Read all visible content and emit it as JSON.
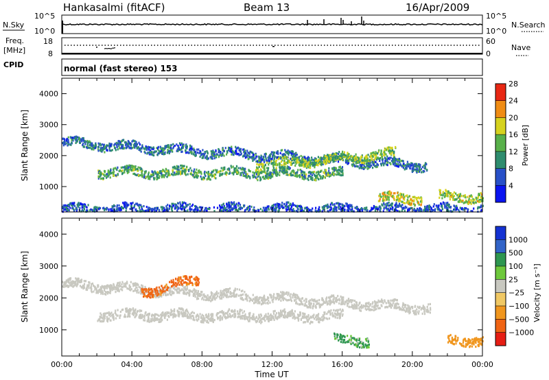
{
  "header": {
    "station": "Hankasalmi (fitACF)",
    "beam": "Beam 13",
    "date": "16/Apr/2009"
  },
  "panels": {
    "nsky_label": "N.Sky",
    "nsky_ticks": [
      "10^5",
      "10^0"
    ],
    "nsearch_label": "N.Search",
    "nsearch_ticks": [
      "10^5",
      "10^0"
    ],
    "freq_label": "Freq.",
    "freq_unit": "[MHz]",
    "freq_ticks": [
      "18",
      "8"
    ],
    "nave_label": "Nave",
    "nave_ticks": [
      "60",
      "0"
    ],
    "cpid_label": "CPID",
    "cpid_text": "normal (fast stereo) 153"
  },
  "chart_data": [
    {
      "type": "heatmap",
      "name": "power",
      "ylabel": "Slant Range [km]",
      "xlabel": "",
      "x_ticks": [
        "00:00",
        "04:00",
        "08:00",
        "12:00",
        "16:00",
        "20:00",
        "00:00"
      ],
      "xlim_hours": [
        0,
        24
      ],
      "y_ticks": [
        1000,
        2000,
        3000,
        4000
      ],
      "ylim": [
        180,
        4500
      ],
      "colorbar": {
        "label": "Power [dB]",
        "ticks": [
          "4",
          "8",
          "12",
          "16",
          "20",
          "24",
          "28"
        ],
        "colors": [
          "#0a14f0",
          "#2850c8",
          "#2e8c6e",
          "#58b04a",
          "#d6d21e",
          "#f08c14",
          "#e82814"
        ]
      },
      "features": [
        {
          "t0": 0.0,
          "t1": 20.8,
          "range_start": 2450,
          "range_end": 1700,
          "level": 10
        },
        {
          "t0": 2.0,
          "t1": 16.0,
          "range_start": 1500,
          "range_end": 1450,
          "level": 14
        },
        {
          "t0": 11.0,
          "t1": 19.0,
          "range_start": 1700,
          "range_end": 2100,
          "level": 17
        },
        {
          "t0": 18.0,
          "t1": 20.5,
          "range_start": 650,
          "range_end": 650,
          "level": 20
        },
        {
          "t0": 21.5,
          "t1": 24.0,
          "range_start": 700,
          "range_end": 700,
          "level": 18
        },
        {
          "t0": 0.0,
          "t1": 24.0,
          "range_start": 300,
          "range_end": 300,
          "level": 8
        }
      ]
    },
    {
      "type": "heatmap",
      "name": "velocity",
      "ylabel": "Slant Range [km]",
      "xlabel": "Time UT",
      "x_ticks": [
        "00:00",
        "04:00",
        "08:00",
        "12:00",
        "16:00",
        "20:00",
        "00:00"
      ],
      "xlim_hours": [
        0,
        24
      ],
      "y_ticks": [
        1000,
        2000,
        3000,
        4000
      ],
      "ylim": [
        180,
        4500
      ],
      "colorbar": {
        "label": "Velocity [m s⁻¹]",
        "ticks": [
          "1000",
          "500",
          "100",
          "25",
          "−25",
          "−100",
          "−500",
          "−1000"
        ],
        "colors": [
          "#1432d2",
          "#3264c8",
          "#2e9650",
          "#6ec83c",
          "#c8c8c0",
          "#f0c864",
          "#f0961e",
          "#f06414",
          "#e61e14"
        ]
      },
      "features": [
        {
          "t0": 0.0,
          "t1": 21.0,
          "range_start": 2450,
          "range_end": 1700,
          "velocity": 0
        },
        {
          "t0": 4.5,
          "t1": 7.8,
          "range_start": 2200,
          "range_end": 2600,
          "velocity": -600
        },
        {
          "t0": 2.0,
          "t1": 16.0,
          "range_start": 1500,
          "range_end": 1450,
          "velocity": 0
        },
        {
          "t0": 15.5,
          "t1": 17.5,
          "range_start": 700,
          "range_end": 700,
          "velocity": 150
        },
        {
          "t0": 22.0,
          "t1": 24.0,
          "range_start": 700,
          "range_end": 700,
          "velocity": -300
        }
      ]
    }
  ],
  "colors": {
    "frame": "#000000",
    "background": "#ffffff"
  }
}
